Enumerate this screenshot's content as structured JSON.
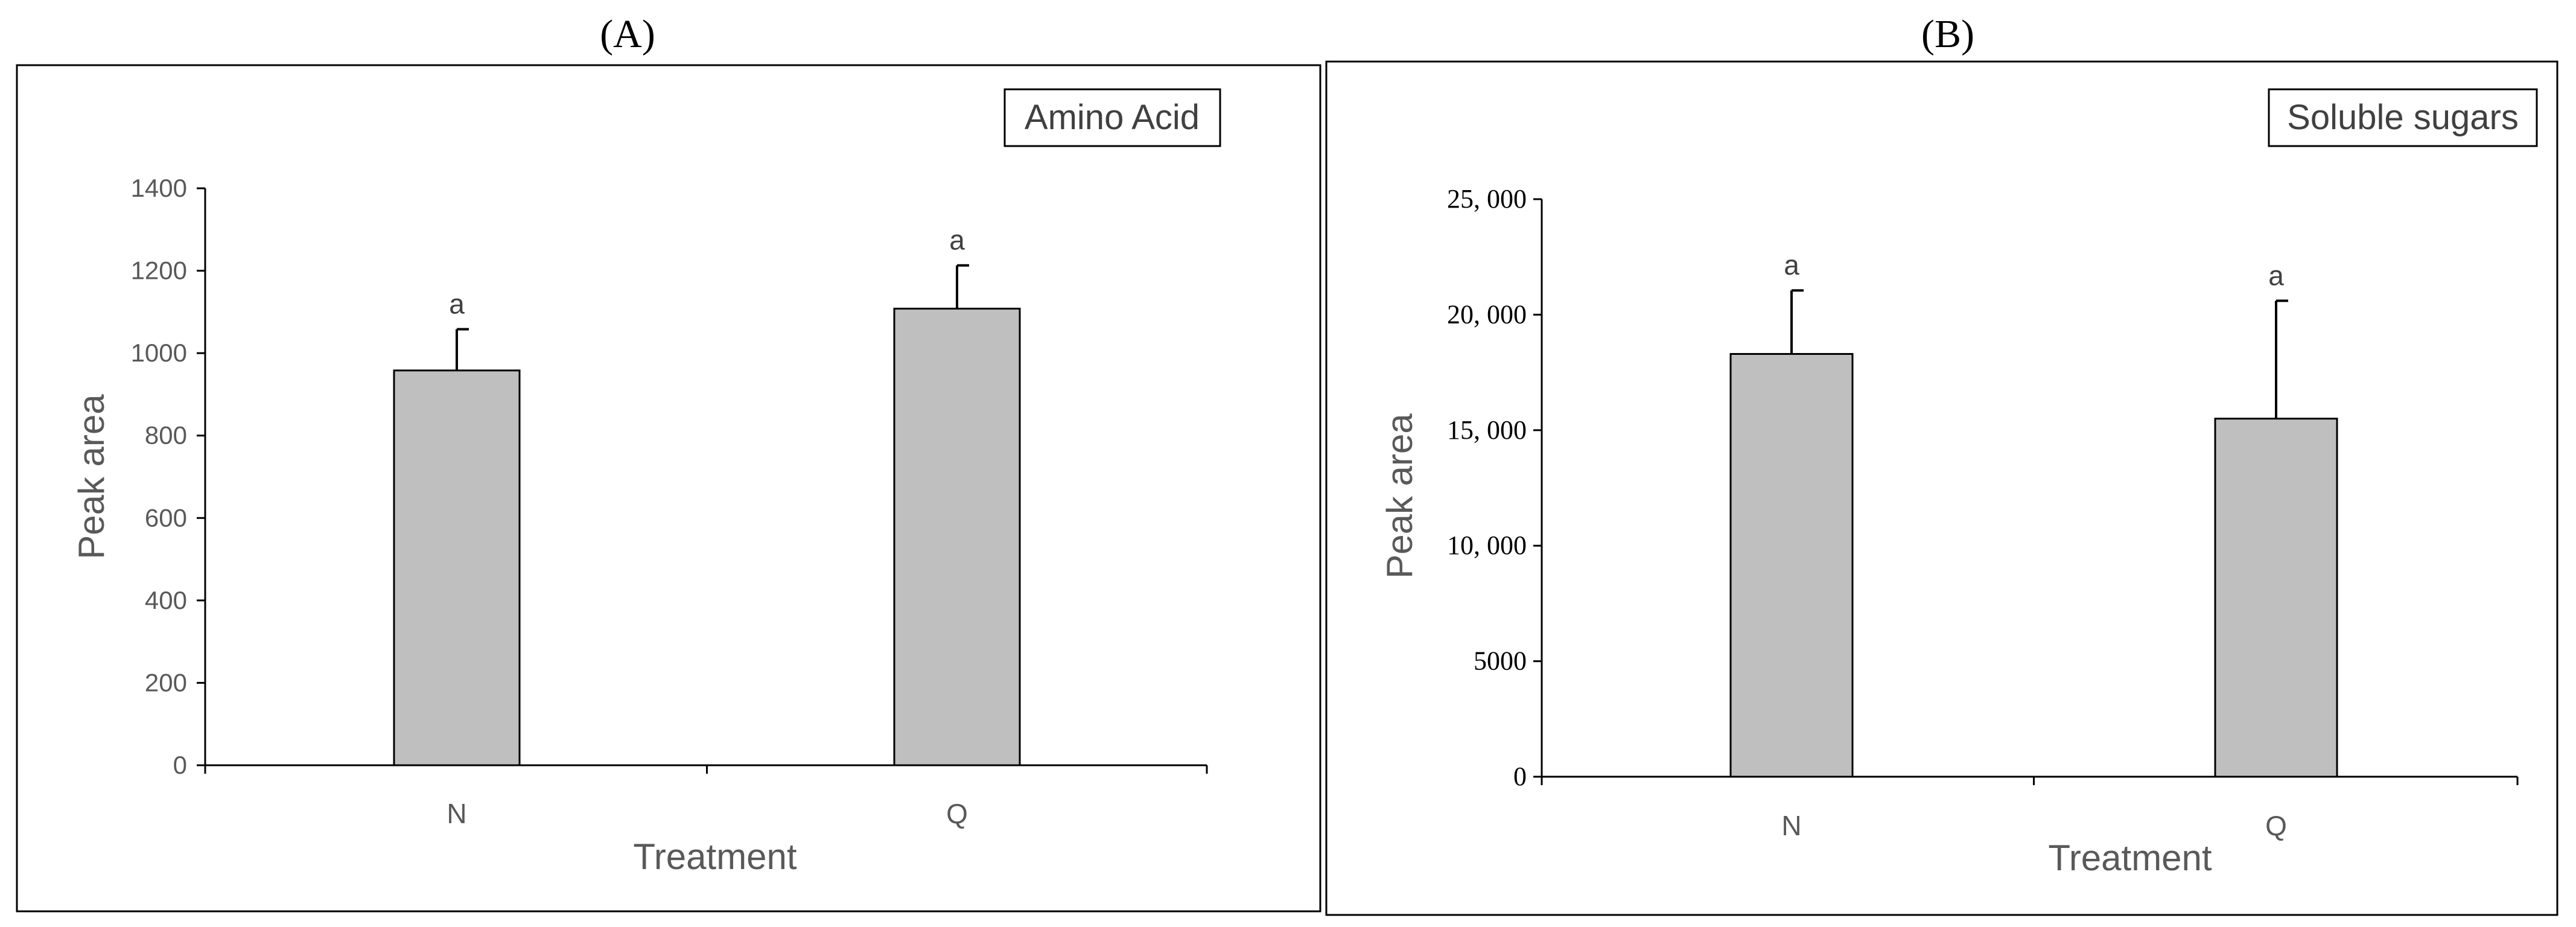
{
  "chart_data": [
    {
      "type": "bar",
      "panel": "(A)",
      "legend_label": "Amino Acid",
      "legend_position": "top-right",
      "categories": [
        "N",
        "Q"
      ],
      "values": [
        958,
        1108
      ],
      "errors": [
        100,
        105
      ],
      "significance_labels": [
        "a",
        "a"
      ],
      "xlabel": "Treatment",
      "ylabel": "Peak area",
      "ylim": [
        0,
        1400
      ],
      "yticks": [
        "0",
        "200",
        "400",
        "600",
        "800",
        "1000",
        "1200",
        "1400"
      ],
      "bar_color": "#bfbfbf",
      "grid": false
    },
    {
      "type": "bar",
      "panel": "(B)",
      "legend_label": "Soluble sugars",
      "legend_position": "top-right",
      "categories": [
        "N",
        "Q"
      ],
      "values": [
        18300,
        15500
      ],
      "errors": [
        2750,
        5100
      ],
      "significance_labels": [
        "a",
        "a"
      ],
      "xlabel": "Treatment",
      "ylabel": "Peak area",
      "ylim": [
        0,
        25000
      ],
      "yticks": [
        "0",
        "5000",
        "10, 000",
        "15, 000",
        "20, 000",
        "25, 000"
      ],
      "bar_color": "#bfbfbf",
      "grid": false
    }
  ]
}
